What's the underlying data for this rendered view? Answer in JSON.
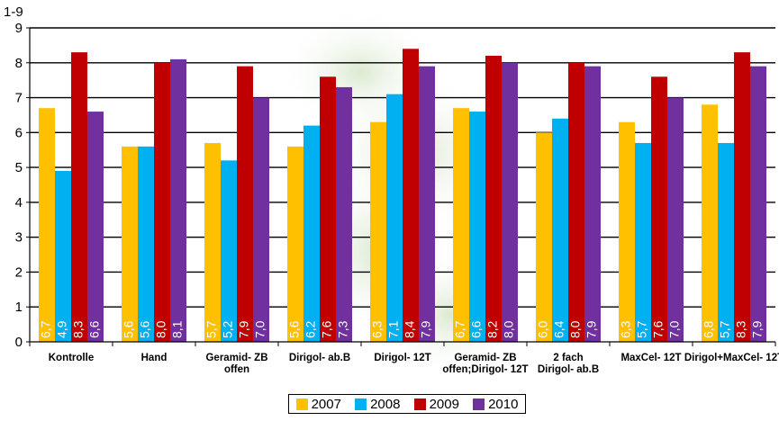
{
  "chart_data": {
    "type": "bar",
    "ylabel": "1-9",
    "ylim": [
      0,
      9
    ],
    "yticks": [
      "0",
      "1",
      "2",
      "3",
      "4",
      "5",
      "6",
      "7",
      "8",
      "9"
    ],
    "grid": true,
    "legend_position": "bottom",
    "categories": [
      "Kontrolle",
      "Hand",
      "Geramid- ZB offen",
      "Dirigol- ab.B",
      "Dirigol- 12T",
      "Geramid- ZB offen;Dirigol- 12T",
      "2 fach Dirigol- ab.B",
      "MaxCel- 12T",
      "Dirigol+MaxCel- 12T"
    ],
    "series": [
      {
        "name": "2007",
        "color": "#FFC000",
        "values": [
          6.7,
          5.6,
          5.7,
          5.6,
          6.3,
          6.7,
          6.0,
          6.3,
          6.8
        ],
        "labels": [
          "6,7",
          "5,6",
          "5,7",
          "5,6",
          "6,3",
          "6,7",
          "6,0",
          "6,3",
          "6,8"
        ]
      },
      {
        "name": "2008",
        "color": "#00B0F0",
        "values": [
          4.9,
          5.6,
          5.2,
          6.2,
          7.1,
          6.6,
          6.4,
          5.7,
          5.7
        ],
        "labels": [
          "4,9",
          "5,6",
          "5,2",
          "6,2",
          "7,1",
          "6,6",
          "6,4",
          "5,7",
          "5,7"
        ]
      },
      {
        "name": "2009",
        "color": "#C00000",
        "values": [
          8.3,
          8.0,
          7.9,
          7.6,
          8.4,
          8.2,
          8.0,
          7.6,
          8.3
        ],
        "labels": [
          "8,3",
          "8,0",
          "7,9",
          "7,6",
          "8,4",
          "8,2",
          "8,0",
          "7,6",
          "8,3"
        ]
      },
      {
        "name": "2010",
        "color": "#7030A0",
        "values": [
          6.6,
          8.1,
          7.0,
          7.3,
          7.9,
          8.0,
          7.9,
          7.0,
          7.9
        ],
        "labels": [
          "6,6",
          "8,1",
          "7,0",
          "7,3",
          "7,9",
          "8,0",
          "7,9",
          "7,0",
          "7,9"
        ]
      }
    ]
  }
}
